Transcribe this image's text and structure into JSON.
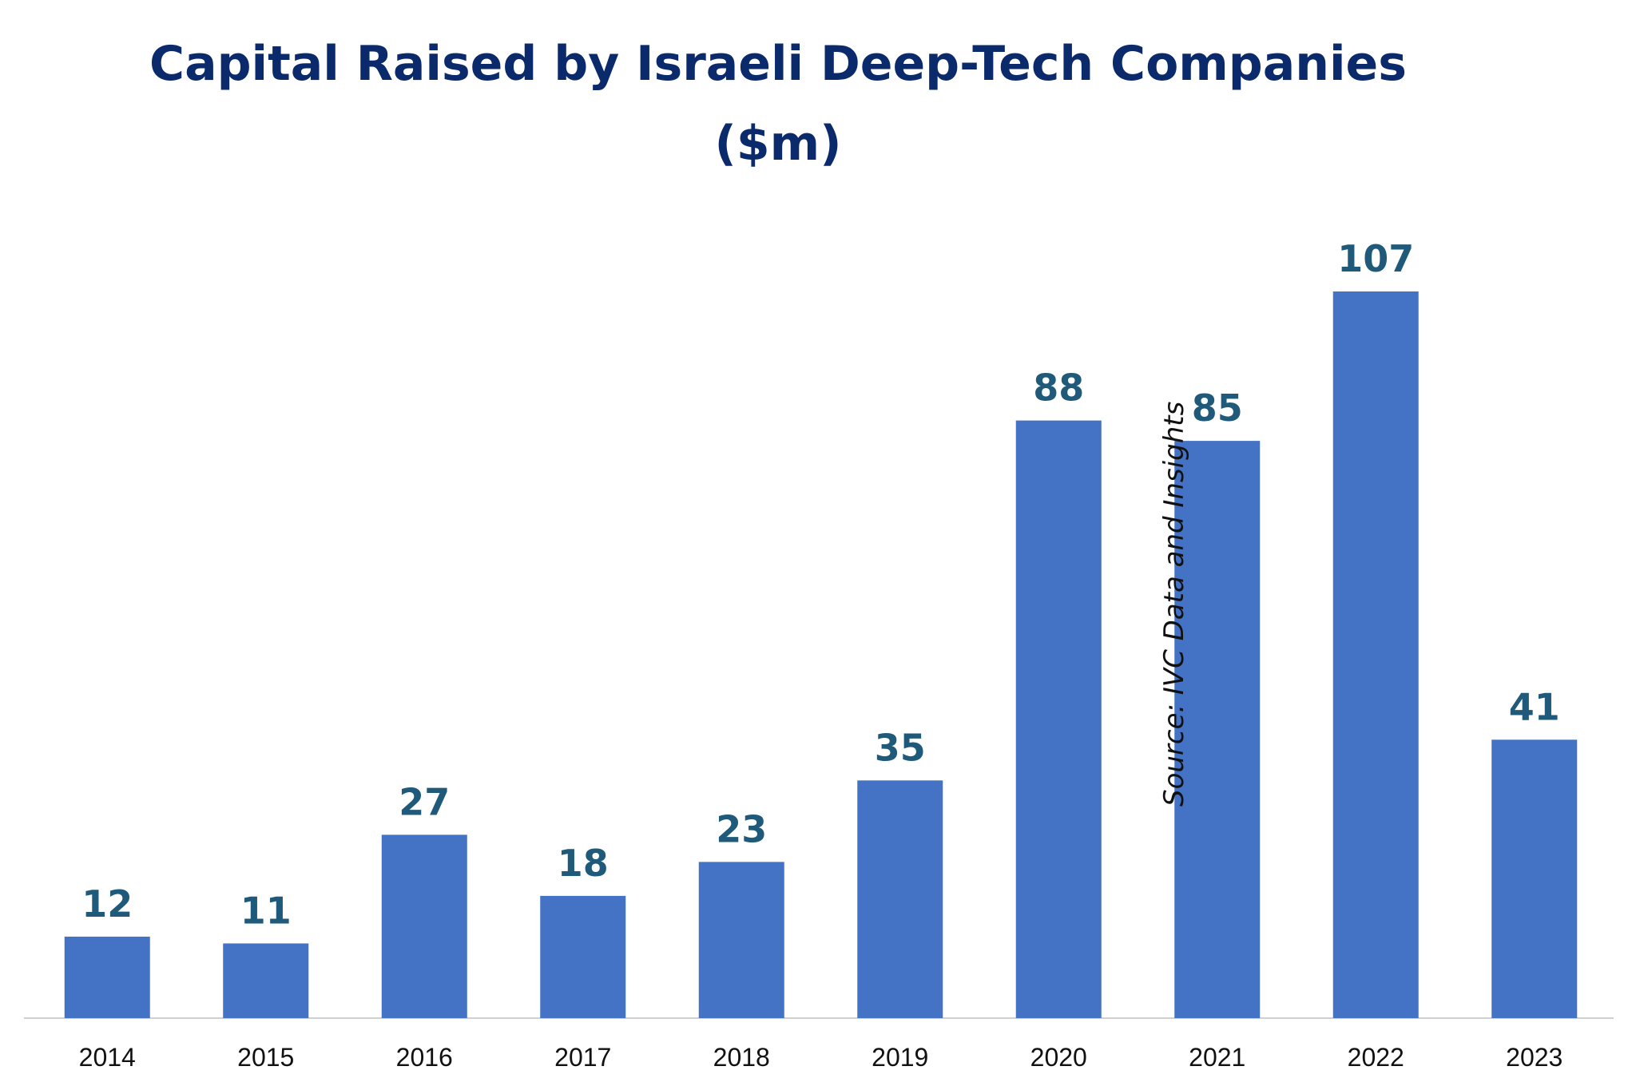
{
  "chart_data": {
    "type": "bar",
    "title": "Capital Raised by Israeli Deep-Tech Companies",
    "subtitle": "($m)",
    "categories": [
      "2014",
      "2015",
      "2016",
      "2017",
      "2018",
      "2019",
      "2020",
      "2021",
      "2022",
      "2023"
    ],
    "values": [
      12,
      11,
      27,
      18,
      23,
      35,
      88,
      85,
      107,
      41
    ],
    "xlabel": "",
    "ylabel": "",
    "ylim": [
      0,
      120
    ],
    "grid": false,
    "legend": "none",
    "data_labels": true,
    "annotation": "Source: IVC Data and Insights",
    "colors": {
      "bar": "#4472c4",
      "data_label": "#1f5a7a",
      "title": "#0b2a6b",
      "axis": "#d0d0d0",
      "tick_label": "#111111"
    }
  }
}
